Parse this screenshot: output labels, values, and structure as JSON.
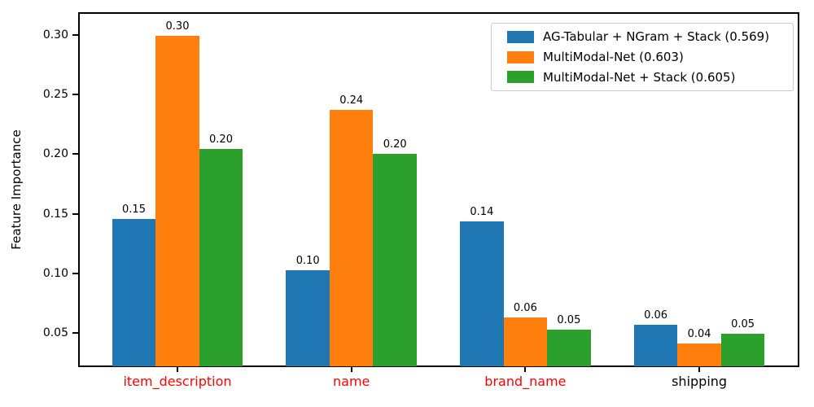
{
  "chart_data": {
    "type": "bar",
    "title": "",
    "xlabel": "",
    "ylabel": "Feature Importance",
    "categories": [
      "item_description",
      "name",
      "brand_name",
      "shipping"
    ],
    "xtick_colors": [
      "#ff0000",
      "#ff0000",
      "#ff0000",
      "#000000"
    ],
    "series": [
      {
        "name": "AG-Tabular + NGram + Stack (0.569)",
        "color": "#1f77b4",
        "values": [
          0.1455,
          0.1025,
          0.1435,
          0.0565
        ],
        "bar_labels": [
          "0.15",
          "0.10",
          "0.14",
          "0.06"
        ]
      },
      {
        "name": "MultiModal-Net (0.603)",
        "color": "#ff7f0e",
        "values": [
          0.2995,
          0.2375,
          0.063,
          0.041
        ],
        "bar_labels": [
          "0.30",
          "0.24",
          "0.06",
          "0.04"
        ]
      },
      {
        "name": "MultiModal-Net + Stack (0.605)",
        "color": "#2ca02c",
        "values": [
          0.2045,
          0.2,
          0.0525,
          0.049
        ],
        "bar_labels": [
          "0.20",
          "0.20",
          "0.05",
          "0.05"
        ]
      }
    ],
    "yticks": [
      0.05,
      0.1,
      0.15,
      0.2,
      0.25,
      0.3
    ],
    "ytick_labels": [
      "0.05",
      "0.10",
      "0.15",
      "0.20",
      "0.25",
      "0.30"
    ],
    "ylim": [
      0.021,
      0.3194
    ],
    "legend_position": "upper right",
    "grid": false
  }
}
